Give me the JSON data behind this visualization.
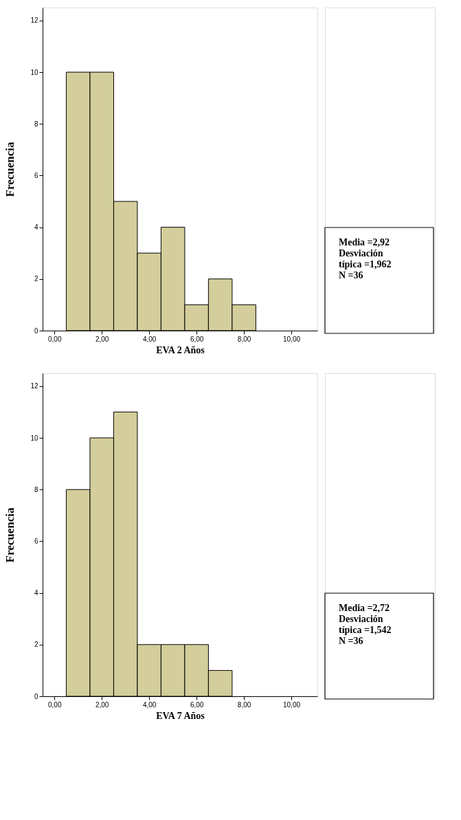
{
  "chart_data": [
    {
      "type": "histogram",
      "xlabel": "EVA 2 Años",
      "ylabel": "Frecuencia",
      "color": "#d3ce9b",
      "bins": [
        0.5,
        1.5,
        2.5,
        3.5,
        4.5,
        5.5,
        6.5,
        7.5,
        8.5
      ],
      "values": [
        10,
        10,
        5,
        3,
        4,
        1,
        2,
        1
      ],
      "xlim": [
        -0.5,
        11.1
      ],
      "ylim": [
        0,
        12.5
      ],
      "xticks": [
        {
          "value": 0,
          "label": "0,00"
        },
        {
          "value": 2,
          "label": "2,00"
        },
        {
          "value": 4,
          "label": "4,00"
        },
        {
          "value": 6,
          "label": "6,00"
        },
        {
          "value": 8,
          "label": "8,00"
        },
        {
          "value": 10,
          "label": "10,00"
        }
      ],
      "yticks": [
        0,
        2,
        4,
        6,
        8,
        10,
        12
      ],
      "annotations": [
        "Media =2,92",
        "Desviación típica =1,962",
        "N =36"
      ]
    },
    {
      "type": "histogram",
      "xlabel": "EVA 7 Años",
      "ylabel": "Frecuencia",
      "color": "#d3ce9b",
      "bins": [
        0.5,
        1.5,
        2.5,
        3.5,
        4.5,
        5.5,
        6.5,
        7.5
      ],
      "values": [
        8,
        10,
        11,
        2,
        2,
        2,
        1
      ],
      "xlim": [
        -0.5,
        11.1
      ],
      "ylim": [
        0,
        12.5
      ],
      "xticks": [
        {
          "value": 0,
          "label": "0,00"
        },
        {
          "value": 2,
          "label": "2,00"
        },
        {
          "value": 4,
          "label": "4,00"
        },
        {
          "value": 6,
          "label": "6,00"
        },
        {
          "value": 8,
          "label": "8,00"
        },
        {
          "value": 10,
          "label": "10,00"
        }
      ],
      "yticks": [
        0,
        2,
        4,
        6,
        8,
        10,
        12
      ],
      "annotations": [
        "Media =2,72",
        "Desviación típica =1,542",
        "N =36"
      ]
    }
  ]
}
